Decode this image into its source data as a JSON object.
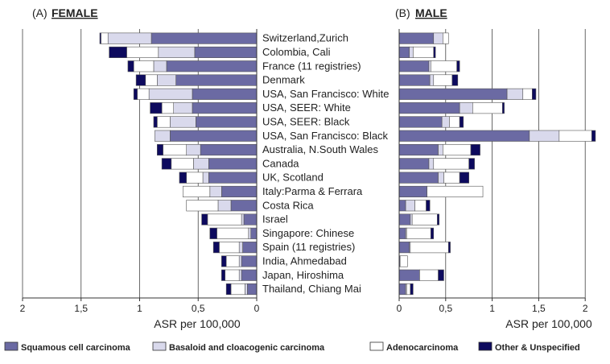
{
  "chart_data": {
    "type": "bar",
    "orientation": "horizontal",
    "stacked": true,
    "categories": [
      "Switzerland,Zurich",
      "Colombia, Cali",
      "France (11 registries)",
      "Denmark",
      "USA, San Francisco: White",
      "USA, SEER: White",
      "USA, SEER: Black",
      "USA, San Francisco: Black",
      "Australia, N.South Wales",
      "Canada",
      "UK, Scotland",
      "Italy:Parma & Ferrara",
      "Costa Rica",
      "Israel",
      "Singapore: Chinese",
      "Spain (11 registries)",
      "India, Ahmedabad",
      "Japan, Hiroshima",
      "Thailand, Chiang Mai"
    ],
    "colors": {
      "Squamous cell carcinoma": "#6b6aa3",
      "Basaloid and cloacogenic carcinoma": "#d9d9ec",
      "Adenocarcinoma": "#ffffff",
      "Other & Unspecified": "#0d0a5e"
    },
    "panels": [
      {
        "label": "(A)",
        "title": "FEMALE",
        "direction": "reversed",
        "xlim": [
          0,
          2
        ],
        "xticks": [
          "2",
          "1,5",
          "1",
          "0,5",
          "0"
        ],
        "xlabel": "ASR per 100,000",
        "series": [
          {
            "name": "Squamous cell carcinoma",
            "values": [
              0.9,
              0.53,
              0.77,
              0.69,
              0.55,
              0.55,
              0.52,
              0.74,
              0.48,
              0.41,
              0.41,
              0.3,
              0.22,
              0.11,
              0.05,
              0.12,
              0.13,
              0.13,
              0.08
            ]
          },
          {
            "name": "Basaloid and cloacogenic carcinoma",
            "values": [
              0.37,
              0.31,
              0.11,
              0.16,
              0.37,
              0.16,
              0.22,
              0.13,
              0.12,
              0.13,
              0.05,
              0.1,
              0.11,
              0.02,
              0.02,
              0.03,
              0.02,
              0.02,
              0.02
            ]
          },
          {
            "name": "Adenocarcinoma",
            "values": [
              0.06,
              0.27,
              0.17,
              0.1,
              0.1,
              0.1,
              0.11,
              0.0,
              0.2,
              0.19,
              0.14,
              0.23,
              0.27,
              0.29,
              0.27,
              0.17,
              0.11,
              0.12,
              0.12
            ]
          },
          {
            "name": "Other & Unspecified",
            "values": [
              0.01,
              0.15,
              0.05,
              0.08,
              0.03,
              0.1,
              0.03,
              0.0,
              0.05,
              0.08,
              0.06,
              0.0,
              0.0,
              0.05,
              0.06,
              0.05,
              0.04,
              0.03,
              0.04
            ]
          }
        ]
      },
      {
        "label": "(B)",
        "title": "MALE",
        "direction": "normal",
        "xlim": [
          0,
          2.1
        ],
        "xticks": [
          "0",
          "0,5",
          "1",
          "1,5",
          "2"
        ],
        "xlabel": "ASR per 100,000",
        "series": [
          {
            "name": "Squamous cell carcinoma",
            "values": [
              0.37,
              0.11,
              0.32,
              0.33,
              1.16,
              0.65,
              0.46,
              1.4,
              0.42,
              0.32,
              0.42,
              0.3,
              0.07,
              0.12,
              0.07,
              0.11,
              0.01,
              0.22,
              0.07
            ]
          },
          {
            "name": "Basaloid and cloacogenic carcinoma",
            "values": [
              0.1,
              0.04,
              0.02,
              0.04,
              0.17,
              0.14,
              0.08,
              0.32,
              0.05,
              0.05,
              0.06,
              0.0,
              0.1,
              0.02,
              0.01,
              0.01,
              0.0,
              0.0,
              0.01
            ]
          },
          {
            "name": "Adenocarcinoma",
            "values": [
              0.06,
              0.22,
              0.28,
              0.2,
              0.1,
              0.32,
              0.11,
              0.35,
              0.3,
              0.38,
              0.17,
              0.6,
              0.12,
              0.27,
              0.26,
              0.41,
              0.08,
              0.2,
              0.04
            ]
          },
          {
            "name": "Other & Unspecified",
            "values": [
              0.0,
              0.02,
              0.03,
              0.06,
              0.04,
              0.02,
              0.04,
              0.04,
              0.1,
              0.06,
              0.1,
              0.0,
              0.04,
              0.02,
              0.03,
              0.02,
              0.0,
              0.06,
              0.03
            ]
          }
        ]
      }
    ],
    "legend": {
      "placement": "bottom",
      "items": [
        "Squamous cell carcinoma",
        "Basaloid and cloacogenic carcinoma",
        "Adenocarcinoma",
        "Other & Unspecified"
      ]
    },
    "grid": true
  }
}
